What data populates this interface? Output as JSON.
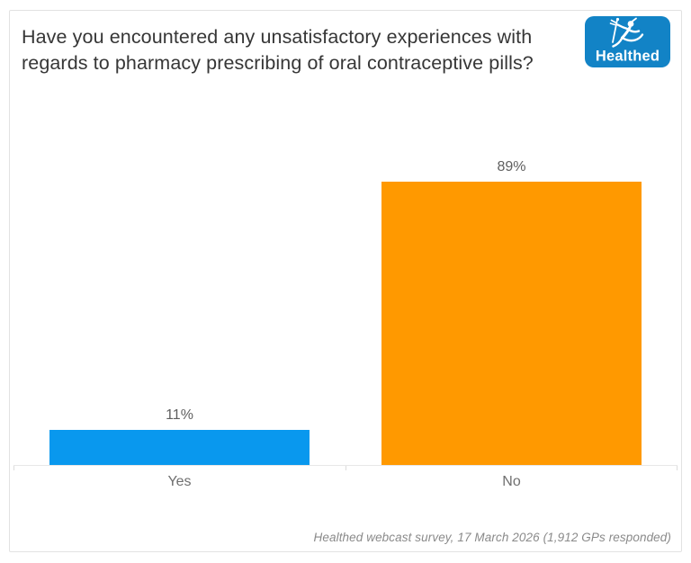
{
  "header": {
    "title": "Have you encountered any unsatisfactory experiences with regards to pharmacy prescribing of oral contraceptive pills?",
    "logo_text": "Healthed"
  },
  "chart_data": {
    "type": "bar",
    "title": "Have you encountered any unsatisfactory experiences with regards to pharmacy prescribing of oral contraceptive pills?",
    "categories": [
      "Yes",
      "No"
    ],
    "values": [
      11,
      89
    ],
    "value_labels": [
      "11%",
      "89%"
    ],
    "colors": [
      "#0998ee",
      "#ff9900"
    ],
    "xlabel": "",
    "ylabel": "",
    "ylim": [
      0,
      100
    ],
    "unit": "percent",
    "grid": false,
    "legend": false,
    "data_labels_position": "above-bar"
  },
  "footer": {
    "caption": "Healthed webcast survey, 17 March 2026 (1,912 GPs responded)"
  },
  "colors": {
    "bar_yes": "#0998ee",
    "bar_no": "#ff9900",
    "logo_blue": "#1283c6",
    "card_border": "#e2e2e2",
    "title_text": "#363636",
    "label_text": "#5f5f5f",
    "axis_line": "#e7e7e7"
  }
}
